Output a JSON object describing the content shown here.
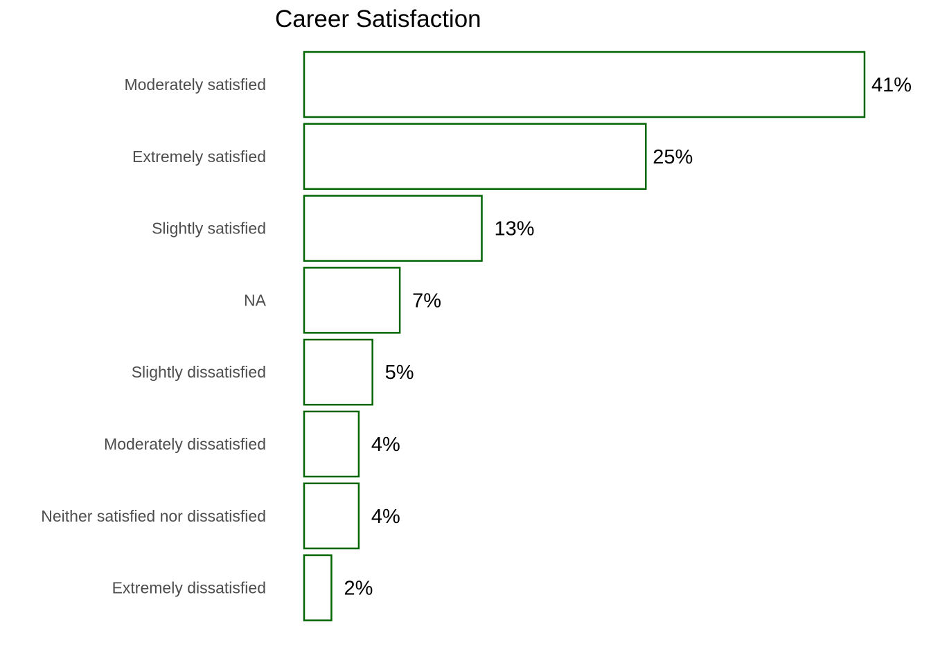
{
  "chart_data": {
    "type": "bar",
    "orientation": "horizontal",
    "title": "Career Satisfaction",
    "xlabel": "",
    "ylabel": "",
    "categories": [
      "Moderately satisfied",
      "Extremely satisfied",
      "Slightly satisfied",
      "NA",
      "Slightly dissatisfied",
      "Moderately dissatisfied",
      "Neither satisfied nor dissatisfied",
      "Extremely dissatisfied"
    ],
    "values": [
      41,
      25,
      13,
      7,
      5,
      4,
      4,
      2
    ],
    "value_labels": [
      "41%",
      "25%",
      "13%",
      "7%",
      "5%",
      "4%",
      "4%",
      "2%"
    ],
    "unit": "%",
    "xlim": [
      0,
      41
    ],
    "grid": false,
    "legend": "none",
    "colors": {
      "bar_outline": "#006400",
      "bar_fill": "#ffffff"
    }
  }
}
